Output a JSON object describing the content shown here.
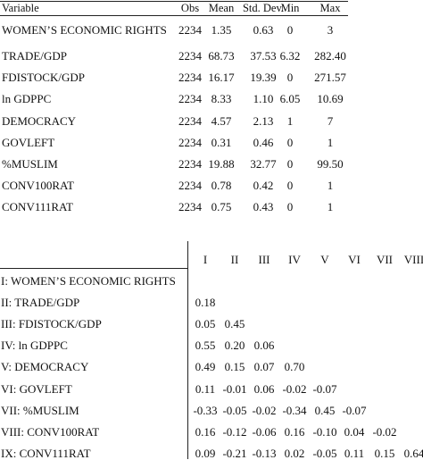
{
  "summary": {
    "headers": [
      "Variable",
      "Obs",
      "Mean",
      "Std. Dev.",
      "Min",
      "Max"
    ],
    "rows": [
      {
        "variable": "WOMEN’S ECONOMIC RIGHTS",
        "obs": "2234",
        "mean": "1.35",
        "sd": "0.63",
        "min": "0",
        "max": "3"
      },
      {
        "variable": "TRADE/GDP",
        "obs": "2234",
        "mean": "68.73",
        "sd": "37.53",
        "min": "6.32",
        "max": "282.40"
      },
      {
        "variable": "FDISTOCK/GDP",
        "obs": "2234",
        "mean": "16.17",
        "sd": "19.39",
        "min": "0",
        "max": "271.57"
      },
      {
        "variable": "ln GDPPC",
        "obs": "2234",
        "mean": "8.33",
        "sd": "1.10",
        "min": "6.05",
        "max": "10.69"
      },
      {
        "variable": "DEMOCRACY",
        "obs": "2234",
        "mean": "4.57",
        "sd": "2.13",
        "min": "1",
        "max": "7"
      },
      {
        "variable": "GOVLEFT",
        "obs": "2234",
        "mean": "0.31",
        "sd": "0.46",
        "min": "0",
        "max": "1"
      },
      {
        "variable": "%MUSLIM",
        "obs": "2234",
        "mean": "19.88",
        "sd": "32.77",
        "min": "0",
        "max": "99.50"
      },
      {
        "variable": "CONV100RAT",
        "obs": "2234",
        "mean": "0.78",
        "sd": "0.42",
        "min": "0",
        "max": "1"
      },
      {
        "variable": "CONV111RAT",
        "obs": "2234",
        "mean": "0.75",
        "sd": "0.43",
        "min": "0",
        "max": "1"
      }
    ]
  },
  "correlation": {
    "columns": [
      "I",
      "II",
      "III",
      "IV",
      "V",
      "VI",
      "VII",
      "VIII"
    ],
    "rows": [
      {
        "label": "I: WOMEN’S ECONOMIC RIGHTS",
        "values": []
      },
      {
        "label": "II: TRADE/GDP",
        "values": [
          "0.18"
        ]
      },
      {
        "label": "III: FDISTOCK/GDP",
        "values": [
          "0.05",
          "0.45"
        ]
      },
      {
        "label": "IV: ln GDPPC",
        "values": [
          "0.55",
          "0.20",
          "0.06"
        ]
      },
      {
        "label": "V: DEMOCRACY",
        "values": [
          "0.49",
          "0.15",
          "0.07",
          "0.70"
        ]
      },
      {
        "label": "VI: GOVLEFT",
        "values": [
          "0.11",
          "-0.01",
          "0.06",
          "-0.02",
          "-0.07"
        ]
      },
      {
        "label": "VII: %MUSLIM",
        "values": [
          "-0.33",
          "-0.05",
          "-0.02",
          "-0.34",
          "0.45",
          "-0.07"
        ]
      },
      {
        "label": "VIII: CONV100RAT",
        "values": [
          "0.16",
          "-0.12",
          "-0.06",
          "0.16",
          "-0.10",
          "0.04",
          "-0.02"
        ]
      },
      {
        "label": "IX: CONV111RAT",
        "values": [
          "0.09",
          "-0.21",
          "-0.13",
          "0.02",
          "-0.05",
          "0.11",
          "0.15",
          "0.64"
        ]
      }
    ]
  }
}
